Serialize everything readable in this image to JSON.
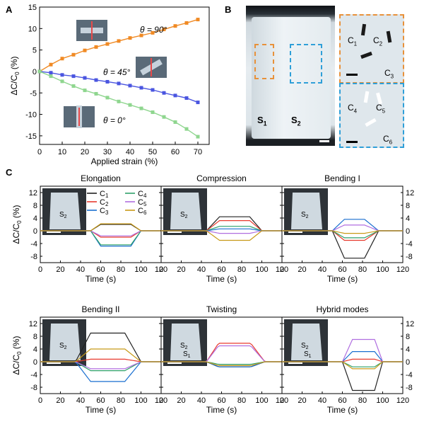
{
  "panels": {
    "a_label": "A",
    "b_label": "B",
    "c_label": "C"
  },
  "panelB": {
    "s1": "S",
    "s1_sub": "1",
    "s2": "S",
    "s2_sub": "2",
    "zoom1_labels": [
      {
        "t": "C",
        "s": "1"
      },
      {
        "t": "C",
        "s": "2"
      },
      {
        "t": "C",
        "s": "3"
      }
    ],
    "zoom2_labels": [
      {
        "t": "C",
        "s": "4"
      },
      {
        "t": "C",
        "s": "5"
      },
      {
        "t": "C",
        "s": "6"
      }
    ],
    "colors": {
      "orange_box": "#e8913a",
      "blue_box": "#2f9fd8"
    }
  },
  "chart_data": [
    {
      "id": "A",
      "type": "line",
      "xlabel": "Applied strain (%)",
      "ylabel": "ΔC/C0 (%)",
      "xlim": [
        0,
        75
      ],
      "ylim": [
        -17,
        15
      ],
      "xticks": [
        0,
        10,
        20,
        30,
        40,
        50,
        60,
        70
      ],
      "yticks": [
        -15,
        -10,
        -5,
        0,
        5,
        10,
        15
      ],
      "x": [
        0,
        5,
        10,
        15,
        20,
        25,
        30,
        35,
        40,
        45,
        50,
        55,
        60,
        65,
        70
      ],
      "series": [
        {
          "label_text": "θ = 90°",
          "color": "#f08a24",
          "values": [
            0,
            1.6,
            3.0,
            3.9,
            4.9,
            5.7,
            6.4,
            7.1,
            7.8,
            8.4,
            9.0,
            9.8,
            10.6,
            11.3,
            12.1
          ]
        },
        {
          "label_text": "θ = 45°",
          "color": "#4a55e0",
          "values": [
            0,
            -0.3,
            -0.8,
            -1.1,
            -1.5,
            -2.0,
            -2.4,
            -2.8,
            -3.3,
            -3.8,
            -4.3,
            -5.0,
            -5.6,
            -6.2,
            -7.2
          ]
        },
        {
          "label_text": "θ = 0°",
          "color": "#8fd68f",
          "values": [
            0,
            -1.1,
            -2.3,
            -3.4,
            -4.4,
            -5.2,
            -6.1,
            -7.0,
            -7.8,
            -8.6,
            -9.5,
            -10.6,
            -11.8,
            -13.4,
            -15.2
          ]
        }
      ]
    },
    {
      "id": "C",
      "type": "line",
      "ylabel": "ΔC/C0 (%)",
      "xlabel": "Time (s)",
      "xlim": [
        0,
        120
      ],
      "ylim": [
        -10,
        14
      ],
      "xticks": [
        0,
        20,
        40,
        60,
        80,
        100,
        120
      ],
      "yticks": [
        -8,
        -4,
        0,
        4,
        8,
        12
      ],
      "legend": [
        "C1",
        "C2",
        "C3",
        "C4",
        "C5",
        "C6"
      ],
      "legend_colors": [
        "#222222",
        "#e83a2e",
        "#1a6fd0",
        "#2fa06a",
        "#b06fe0",
        "#c89a18"
      ],
      "subplots": [
        {
          "title": "Elongation",
          "levels": [
            2.0,
            -2.0,
            -4.8,
            -4.4,
            -1.6,
            2.2
          ],
          "ramp": [
            50,
            60,
            90,
            100
          ]
        },
        {
          "title": "Compression",
          "levels": [
            4.4,
            3.2,
            0.6,
            1.4,
            -0.8,
            -3.0
          ],
          "ramp": [
            45,
            58,
            88,
            100
          ]
        },
        {
          "title": "Bending I",
          "levels": [
            -8.6,
            -3.0,
            3.6,
            -2.2,
            1.8,
            -0.8
          ],
          "ramp": [
            50,
            62,
            82,
            96
          ]
        },
        {
          "title": "Bending II",
          "levels": [
            9.0,
            0.8,
            -6.2,
            -2.8,
            -2.2,
            4.0
          ],
          "ramp": [
            35,
            50,
            84,
            100
          ]
        },
        {
          "title": "Twisting",
          "levels": [
            -1.6,
            5.8,
            -1.6,
            -0.8,
            5.0,
            -1.2
          ],
          "ramp": [
            45,
            57,
            89,
            103
          ]
        },
        {
          "title": "Hybrid modes",
          "levels": [
            -9.0,
            0.8,
            3.2,
            -1.6,
            7.0,
            -2.2
          ],
          "ramp": [
            60,
            70,
            92,
            100
          ]
        }
      ],
      "insets": [
        {
          "labels": [
            {
              "t": "S",
              "s": "2"
            }
          ]
        },
        {
          "labels": [
            {
              "t": "S",
              "s": "2"
            }
          ]
        },
        {
          "labels": [
            {
              "t": "S",
              "s": "2"
            }
          ]
        },
        {
          "labels": [
            {
              "t": "S",
              "s": "2"
            }
          ]
        },
        {
          "labels": [
            {
              "t": "S",
              "s": "2"
            },
            {
              "t": "S",
              "s": "1"
            }
          ]
        },
        {
          "labels": [
            {
              "t": "S",
              "s": "2"
            },
            {
              "t": "S",
              "s": "1"
            }
          ]
        }
      ]
    }
  ]
}
